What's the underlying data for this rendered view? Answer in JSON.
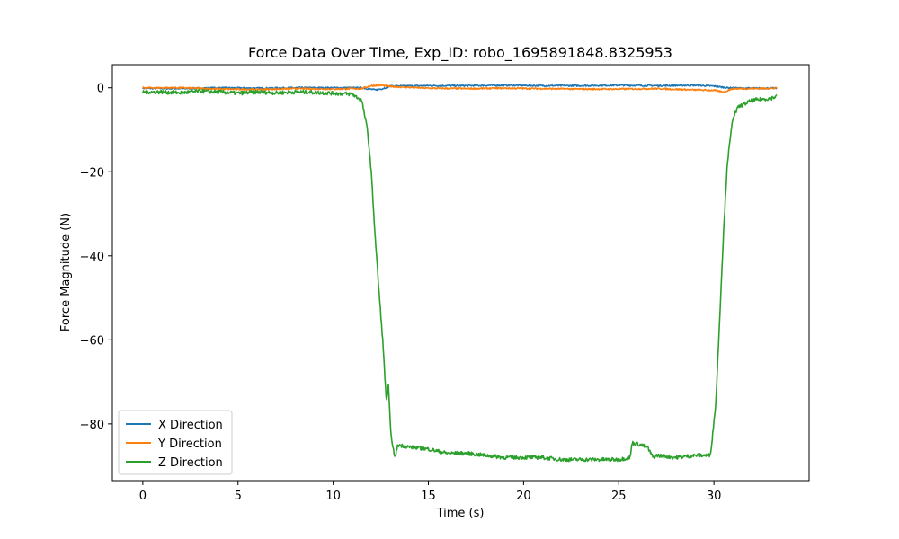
{
  "chart_data": {
    "type": "line",
    "title": "Force Data Over Time, Exp_ID: robo_1695891848.8325953",
    "xlabel": "Time (s)",
    "ylabel": "Force Magnitude (N)",
    "xlim": [
      -1.6,
      35.0
    ],
    "ylim": [
      -93.5,
      5.5
    ],
    "xticks": [
      0,
      5,
      10,
      15,
      20,
      25,
      30
    ],
    "yticks": [
      0,
      -20,
      -40,
      -60,
      -80
    ],
    "ytick_labels": [
      "0",
      "−20",
      "−40",
      "−60",
      "−80"
    ],
    "grid": false,
    "legend_position": "lower-left",
    "series": [
      {
        "name": "X Direction",
        "color": "#1f77b4",
        "x": [
          0,
          2,
          4,
          6,
          8,
          10,
          11.5,
          12.2,
          12.6,
          13,
          15,
          17,
          19,
          21,
          23,
          25,
          27,
          29,
          30,
          30.7,
          31.5,
          33.3
        ],
        "y": [
          -0.1,
          -0.2,
          0.0,
          -0.1,
          0.0,
          0.0,
          0.0,
          -0.5,
          -0.2,
          0.4,
          0.5,
          0.5,
          0.6,
          0.5,
          0.5,
          0.6,
          0.5,
          0.6,
          0.4,
          0.0,
          -0.1,
          -0.1
        ]
      },
      {
        "name": "Y Direction",
        "color": "#ff7f0e",
        "x": [
          0,
          2,
          4,
          6,
          8,
          10,
          11.5,
          12,
          12.5,
          13,
          15,
          17,
          19,
          21,
          23,
          25,
          27,
          29,
          30,
          30.5,
          31,
          32,
          33.3
        ],
        "y": [
          0.0,
          0.0,
          -0.3,
          -0.4,
          -0.2,
          -0.3,
          -0.2,
          0.5,
          0.6,
          0.3,
          -0.1,
          -0.2,
          -0.1,
          -0.2,
          -0.3,
          -0.3,
          -0.2,
          -0.5,
          -0.6,
          -1.0,
          -0.2,
          -0.2,
          -0.1
        ]
      },
      {
        "name": "Z Direction",
        "color": "#2ca02c",
        "x": [
          0,
          1,
          2,
          3,
          4,
          5,
          6,
          7,
          8,
          9,
          10,
          11,
          11.5,
          11.8,
          12.0,
          12.2,
          12.4,
          12.6,
          12.8,
          12.9,
          13.0,
          13.1,
          13.25,
          13.4,
          14,
          15,
          16,
          17,
          18,
          19,
          20,
          21,
          22,
          23,
          24,
          25,
          25.6,
          25.7,
          26,
          26.5,
          26.8,
          27,
          28,
          29,
          29.8,
          29.9,
          30.1,
          30.3,
          30.5,
          30.7,
          31.0,
          31.3,
          32,
          33,
          33.3
        ],
        "y": [
          -1.0,
          -1.0,
          -1.2,
          -0.8,
          -1.0,
          -1.3,
          -1.0,
          -1.2,
          -1.0,
          -1.1,
          -1.3,
          -1.5,
          -3.0,
          -10.0,
          -20.0,
          -35.0,
          -48.0,
          -60.0,
          -75.0,
          -71.0,
          -80.0,
          -85.0,
          -88.0,
          -85.0,
          -85.5,
          -86.0,
          -87.0,
          -87.0,
          -87.5,
          -88.0,
          -88.0,
          -88.0,
          -88.5,
          -88.5,
          -88.5,
          -88.5,
          -88.0,
          -84.5,
          -84.8,
          -85.5,
          -88.0,
          -87.5,
          -88.0,
          -87.5,
          -87.5,
          -84.0,
          -75.0,
          -55.0,
          -35.0,
          -18.0,
          -7.0,
          -4.5,
          -3.0,
          -2.5,
          -2.0
        ]
      }
    ]
  }
}
